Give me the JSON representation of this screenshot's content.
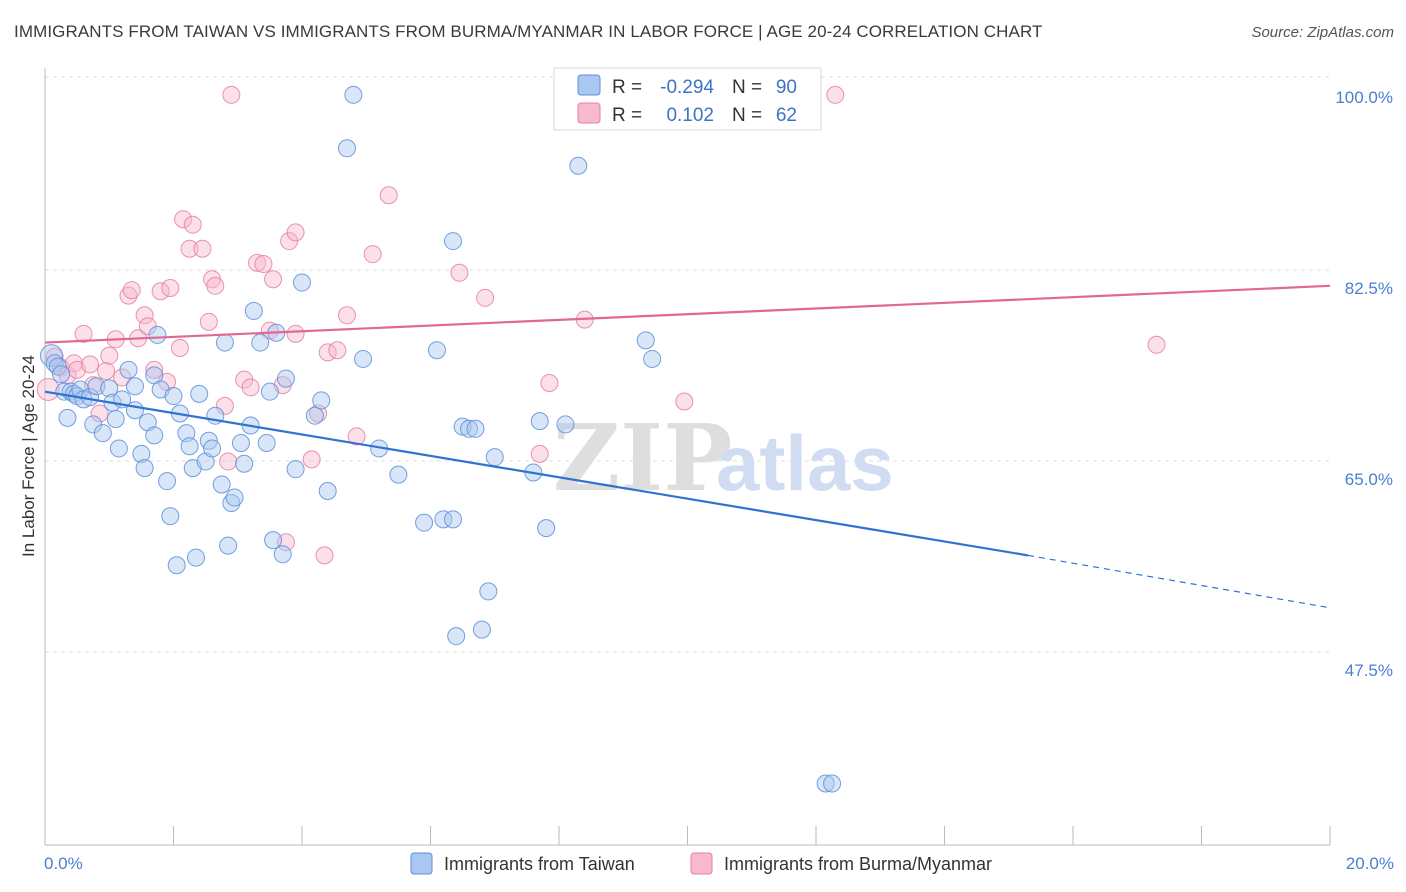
{
  "header": {
    "title": "IMMIGRANTS FROM TAIWAN VS IMMIGRANTS FROM BURMA/MYANMAR IN LABOR FORCE | AGE 20-24 CORRELATION CHART",
    "source": "Source: ZipAtlas.com"
  },
  "watermark": {
    "zip": "ZIP",
    "atlas": "atlas"
  },
  "colors": {
    "taiwan_fill": "#a9c7f0",
    "taiwan_stroke": "#5b8fdc",
    "taiwan_line": "#2f72d0",
    "burma_fill": "#f7b9cf",
    "burma_stroke": "#e87fa3",
    "burma_line": "#e06992",
    "tick_label": "#4a7fd0",
    "grid": "#dddddd"
  },
  "legend": {
    "r_label": "R =",
    "n_label": "N =",
    "rows": [
      {
        "r": "-0.294",
        "n": "90"
      },
      {
        "r": "0.102",
        "n": "62"
      }
    ]
  },
  "chart_data": {
    "type": "scatter",
    "title": "IMMIGRANTS FROM TAIWAN VS IMMIGRANTS FROM BURMA/MYANMAR IN LABOR FORCE | AGE 20-24 CORRELATION CHART",
    "xlabel": "",
    "ylabel": "In Labor Force | Age 20-24",
    "xlim": [
      0,
      20
    ],
    "ylim": [
      32,
      102
    ],
    "y_ticks": [
      47.5,
      65.0,
      82.5,
      100.0
    ],
    "y_tick_labels": [
      "47.5%",
      "65.0%",
      "82.5%",
      "100.0%"
    ],
    "x_tick_labels": [
      "0.0%",
      "20.0%"
    ],
    "grid": "horizontal dashed",
    "legend_placement": "top-center",
    "series": [
      {
        "name": "Immigrants from Taiwan",
        "r": -0.294,
        "n": 90,
        "trend": {
          "x0": 0,
          "y0": 73.0,
          "x1": 15.3,
          "y1": 58.0,
          "dash_to_x": 20,
          "dash_to_y": 53.2
        },
        "points": [
          [
            0.1,
            76.3
          ],
          [
            0.15,
            75.6
          ],
          [
            0.2,
            75.3
          ],
          [
            0.25,
            74.6
          ],
          [
            0.3,
            73.0
          ],
          [
            0.35,
            70.6
          ],
          [
            0.4,
            73.0
          ],
          [
            0.45,
            72.8
          ],
          [
            0.5,
            72.6
          ],
          [
            0.55,
            73.2
          ],
          [
            0.6,
            72.3
          ],
          [
            0.7,
            72.5
          ],
          [
            0.75,
            70.0
          ],
          [
            0.8,
            73.5
          ],
          [
            0.9,
            69.2
          ],
          [
            1.0,
            73.3
          ],
          [
            1.05,
            72.0
          ],
          [
            1.1,
            70.5
          ],
          [
            1.15,
            67.8
          ],
          [
            1.2,
            72.3
          ],
          [
            1.3,
            75.0
          ],
          [
            1.4,
            73.5
          ],
          [
            1.4,
            71.3
          ],
          [
            1.5,
            67.3
          ],
          [
            1.55,
            66.0
          ],
          [
            1.6,
            70.2
          ],
          [
            1.7,
            74.5
          ],
          [
            1.7,
            69.0
          ],
          [
            1.75,
            78.2
          ],
          [
            1.8,
            73.2
          ],
          [
            1.9,
            64.8
          ],
          [
            1.95,
            61.6
          ],
          [
            2.0,
            72.6
          ],
          [
            2.05,
            57.1
          ],
          [
            2.1,
            71.0
          ],
          [
            2.2,
            69.2
          ],
          [
            2.25,
            68.0
          ],
          [
            2.3,
            66.0
          ],
          [
            2.35,
            57.8
          ],
          [
            2.4,
            72.8
          ],
          [
            2.5,
            66.6
          ],
          [
            2.55,
            68.5
          ],
          [
            2.6,
            67.8
          ],
          [
            2.65,
            70.8
          ],
          [
            2.75,
            64.5
          ],
          [
            2.8,
            77.5
          ],
          [
            2.85,
            58.9
          ],
          [
            2.9,
            62.8
          ],
          [
            2.95,
            63.3
          ],
          [
            3.05,
            68.3
          ],
          [
            3.1,
            66.4
          ],
          [
            3.2,
            69.9
          ],
          [
            3.25,
            80.4
          ],
          [
            3.35,
            77.5
          ],
          [
            3.45,
            68.3
          ],
          [
            3.5,
            73.0
          ],
          [
            3.55,
            59.4
          ],
          [
            3.6,
            78.4
          ],
          [
            3.7,
            58.1
          ],
          [
            3.75,
            74.2
          ],
          [
            3.9,
            65.9
          ],
          [
            4.0,
            83.0
          ],
          [
            4.2,
            70.8
          ],
          [
            4.3,
            72.2
          ],
          [
            4.4,
            63.9
          ],
          [
            4.7,
            95.3
          ],
          [
            4.8,
            100.2
          ],
          [
            4.95,
            76.0
          ],
          [
            5.2,
            67.8
          ],
          [
            5.5,
            65.4
          ],
          [
            5.9,
            61.0
          ],
          [
            6.1,
            76.8
          ],
          [
            6.2,
            61.3
          ],
          [
            6.35,
            86.8
          ],
          [
            6.35,
            61.3
          ],
          [
            6.4,
            50.6
          ],
          [
            6.5,
            69.8
          ],
          [
            6.6,
            69.6
          ],
          [
            6.7,
            69.6
          ],
          [
            6.8,
            51.2
          ],
          [
            6.9,
            54.7
          ],
          [
            7.0,
            67.0
          ],
          [
            7.6,
            65.6
          ],
          [
            7.7,
            70.3
          ],
          [
            7.8,
            60.5
          ],
          [
            8.1,
            70.0
          ],
          [
            8.3,
            93.7
          ],
          [
            9.35,
            77.7
          ],
          [
            9.45,
            76.0
          ],
          [
            12.15,
            37.1
          ],
          [
            12.25,
            37.1
          ]
        ]
      },
      {
        "name": "Immigrants from Burma/Myanmar",
        "r": 0.102,
        "n": 62,
        "trend": {
          "x0": 0,
          "y0": 77.5,
          "x1": 20,
          "y1": 82.7
        },
        "points": [
          [
            0.05,
            73.2
          ],
          [
            0.15,
            76.2
          ],
          [
            0.25,
            75.2
          ],
          [
            0.35,
            74.5
          ],
          [
            0.45,
            75.6
          ],
          [
            0.5,
            75.0
          ],
          [
            0.6,
            78.3
          ],
          [
            0.7,
            75.5
          ],
          [
            0.75,
            73.6
          ],
          [
            0.85,
            71.0
          ],
          [
            0.95,
            74.9
          ],
          [
            1.0,
            76.3
          ],
          [
            1.1,
            77.8
          ],
          [
            1.2,
            74.3
          ],
          [
            1.3,
            81.8
          ],
          [
            1.35,
            82.3
          ],
          [
            1.45,
            77.9
          ],
          [
            1.55,
            80.0
          ],
          [
            1.6,
            79.0
          ],
          [
            1.7,
            75.0
          ],
          [
            1.8,
            82.2
          ],
          [
            1.9,
            73.9
          ],
          [
            1.95,
            82.5
          ],
          [
            2.1,
            77.0
          ],
          [
            2.15,
            88.8
          ],
          [
            2.25,
            86.1
          ],
          [
            2.3,
            88.3
          ],
          [
            2.45,
            86.1
          ],
          [
            2.55,
            79.4
          ],
          [
            2.6,
            83.3
          ],
          [
            2.65,
            82.7
          ],
          [
            2.8,
            71.7
          ],
          [
            2.85,
            66.6
          ],
          [
            2.9,
            100.2
          ],
          [
            3.1,
            74.1
          ],
          [
            3.2,
            73.4
          ],
          [
            3.3,
            84.8
          ],
          [
            3.4,
            84.7
          ],
          [
            3.5,
            78.6
          ],
          [
            3.55,
            83.3
          ],
          [
            3.7,
            73.6
          ],
          [
            3.75,
            59.2
          ],
          [
            3.8,
            86.8
          ],
          [
            3.9,
            87.6
          ],
          [
            3.9,
            78.3
          ],
          [
            4.15,
            66.8
          ],
          [
            4.25,
            71.0
          ],
          [
            4.35,
            58.0
          ],
          [
            4.4,
            76.6
          ],
          [
            4.55,
            76.8
          ],
          [
            4.7,
            80.0
          ],
          [
            4.85,
            68.9
          ],
          [
            5.1,
            85.6
          ],
          [
            5.35,
            91.0
          ],
          [
            6.45,
            83.9
          ],
          [
            6.85,
            81.6
          ],
          [
            7.7,
            67.3
          ],
          [
            7.85,
            73.8
          ],
          [
            8.4,
            79.6
          ],
          [
            9.95,
            72.1
          ],
          [
            12.3,
            100.2
          ],
          [
            17.3,
            77.3
          ]
        ]
      }
    ]
  }
}
